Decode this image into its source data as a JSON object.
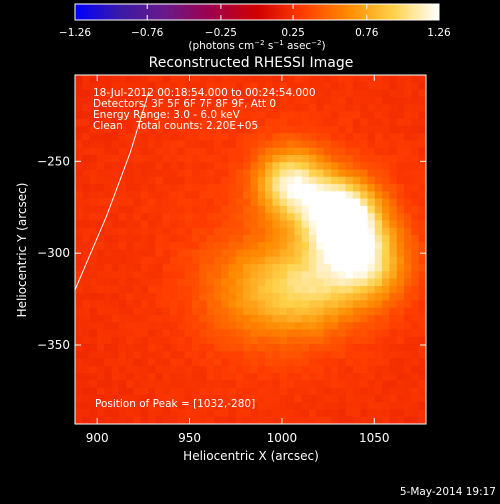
{
  "chart_data": {
    "type": "heatmap",
    "title": "Reconstructed RHESSI Image",
    "xlabel": "Heliocentric X (arcsec)",
    "ylabel": "Heliocentric Y (arcsec)",
    "xlim": [
      888,
      1078
    ],
    "ylim": [
      -393,
      -203
    ],
    "x_ticks": [
      900,
      950,
      1000,
      1050
    ],
    "y_ticks": [
      -250,
      -300,
      -350
    ],
    "x_tick_labels": [
      "900",
      "950",
      "1000",
      "1050"
    ],
    "y_tick_labels": [
      "−250",
      "−300",
      "−350"
    ],
    "colorbar": {
      "min": -1.26,
      "max": 1.26,
      "ticks": [
        -1.26,
        -0.76,
        -0.25,
        0.25,
        0.76,
        1.26
      ],
      "tick_labels": [
        "−1.26",
        "−0.76",
        "−0.25",
        "0.25",
        "0.76",
        "1.26"
      ],
      "unit_prefix": "(photons cm",
      "unit_exp1": "−2",
      "unit_mid": " s",
      "unit_exp2": "−1",
      "unit_mid2": " asec",
      "unit_exp3": "−2",
      "unit_suffix": ")",
      "colors": [
        "#0000ff",
        "#3a1aa6",
        "#6a1a8a",
        "#a0004a",
        "#d00000",
        "#ff3c00",
        "#ff8a00",
        "#ffd24a",
        "#ffffff"
      ]
    },
    "annotations": [
      "18-Jul-2012 00:18:54.000 to 00:24:54.000",
      "Detectors: 3F 5F 6F 7F 8F 9F, Att 0",
      "Energy Range: 3.0 - 6.0 keV",
      "Clean    Total counts: 2.20E+05"
    ],
    "peak_label": "Position of Peak = [1032,-280]",
    "peak": [
      1032,
      -280
    ],
    "sources": [
      {
        "x": 1032,
        "y": -280,
        "amp": 1.2,
        "sigma": 14
      },
      {
        "x": 1005,
        "y": -262,
        "amp": 0.85,
        "sigma": 13
      },
      {
        "x": 1045,
        "y": -305,
        "amp": 0.75,
        "sigma": 15
      },
      {
        "x": 1015,
        "y": -318,
        "amp": 0.55,
        "sigma": 18
      },
      {
        "x": 985,
        "y": -320,
        "amp": 0.35,
        "sigma": 20
      }
    ],
    "background_level": 0.2,
    "limb_curve": [
      [
        888,
        -320
      ],
      [
        905,
        -280
      ],
      [
        918,
        -245
      ],
      [
        928,
        -212
      ]
    ],
    "timestamp": "5-May-2014 19:17"
  }
}
